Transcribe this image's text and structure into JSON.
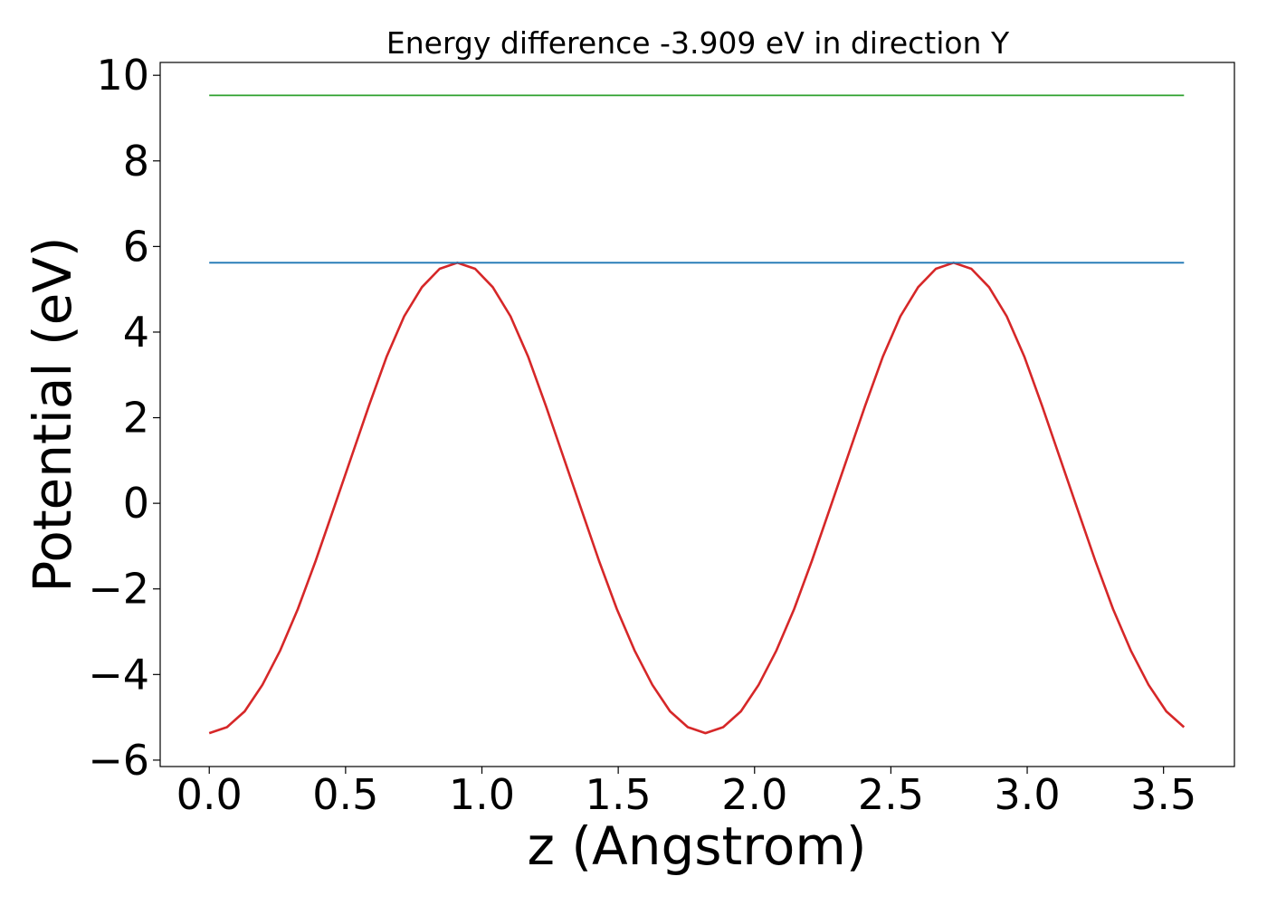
{
  "chart_data": {
    "type": "line",
    "title": "Energy difference -3.909 eV in direction Y",
    "xlabel": "z (Angstrom)",
    "ylabel": "Potential (eV)",
    "xlim": [
      -0.18,
      3.76
    ],
    "ylim": [
      -6.15,
      10.3
    ],
    "xticks": [
      0.0,
      0.5,
      1.0,
      1.5,
      2.0,
      2.5,
      3.0,
      3.5
    ],
    "xtick_labels": [
      "0.0",
      "0.5",
      "1.0",
      "1.5",
      "2.0",
      "2.5",
      "3.0",
      "3.5"
    ],
    "yticks": [
      -6,
      -4,
      -2,
      0,
      2,
      4,
      6,
      8,
      10
    ],
    "ytick_labels": [
      "−6",
      "−4",
      "−2",
      "0",
      "2",
      "4",
      "6",
      "8",
      "10"
    ],
    "grid": false,
    "series": [
      {
        "color": "#d62728",
        "x": [
          0.0,
          0.065,
          0.13,
          0.195,
          0.26,
          0.325,
          0.39,
          0.455,
          0.52,
          0.585,
          0.65,
          0.715,
          0.78,
          0.845,
          0.91,
          0.975,
          1.04,
          1.105,
          1.17,
          1.235,
          1.3,
          1.365,
          1.43,
          1.495,
          1.56,
          1.625,
          1.69,
          1.755,
          1.82,
          1.885,
          1.95,
          2.015,
          2.08,
          2.145,
          2.21,
          2.275,
          2.34,
          2.405,
          2.47,
          2.535,
          2.6,
          2.665,
          2.73,
          2.795,
          2.86,
          2.925,
          2.99,
          3.055,
          3.12,
          3.185,
          3.25,
          3.315,
          3.38,
          3.445,
          3.51,
          3.575
        ],
        "values": [
          -5.37,
          -5.23,
          -4.86,
          -4.24,
          -3.44,
          -2.47,
          -1.35,
          -0.15,
          1.06,
          2.27,
          3.42,
          4.37,
          5.05,
          5.48,
          5.62,
          5.48,
          5.05,
          4.37,
          3.42,
          2.27,
          1.06,
          -0.15,
          -1.35,
          -2.47,
          -3.44,
          -4.24,
          -4.86,
          -5.23,
          -5.37,
          -5.23,
          -4.86,
          -4.24,
          -3.44,
          -2.47,
          -1.35,
          -0.15,
          1.06,
          2.27,
          3.42,
          4.37,
          5.05,
          5.48,
          5.62,
          5.48,
          5.05,
          4.37,
          3.42,
          2.27,
          1.06,
          -0.15,
          -1.35,
          -2.47,
          -3.44,
          -4.24,
          -4.86,
          -5.23
        ]
      },
      {
        "color": "#1f77b4",
        "x": [
          0.0,
          3.575
        ],
        "values": [
          5.62,
          5.62
        ]
      },
      {
        "color": "#2ca02c",
        "x": [
          0.0,
          3.575
        ],
        "values": [
          9.53,
          9.53
        ]
      }
    ]
  }
}
